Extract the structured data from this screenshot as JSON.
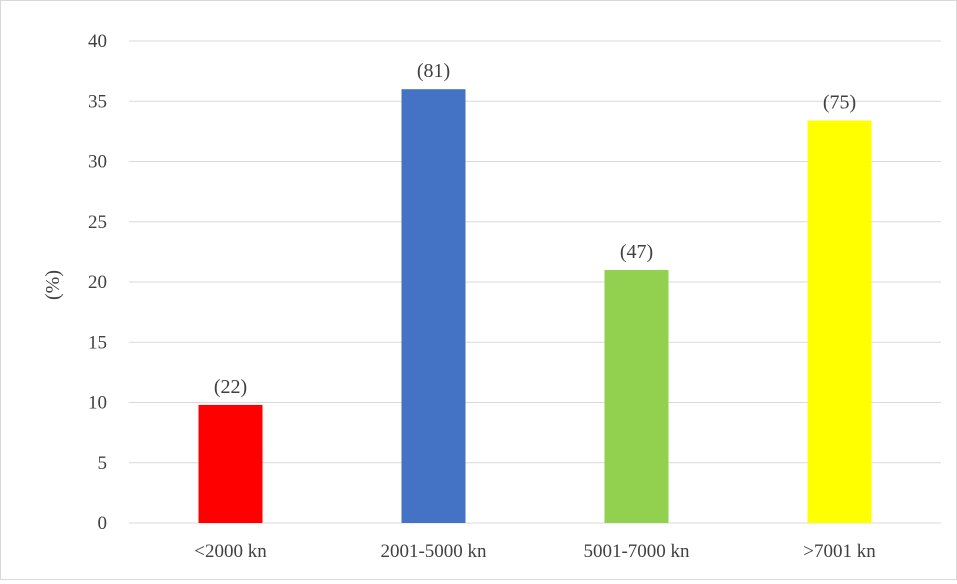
{
  "chart_data": {
    "type": "bar",
    "title": "",
    "xlabel": "",
    "ylabel": "(%)",
    "ylim": [
      0,
      40
    ],
    "yticks": [
      0,
      5,
      10,
      15,
      20,
      25,
      30,
      35,
      40
    ],
    "grid": true,
    "legend": "none",
    "categories": [
      "<2000 kn",
      "2001-5000 kn",
      "5001-7000 kn",
      ">7001 kn"
    ],
    "values": [
      9.8,
      36.0,
      21.0,
      33.4
    ],
    "data_labels": [
      "(22)",
      "(81)",
      "(47)",
      "(75)"
    ],
    "colors": [
      "#ff0000",
      "#4472c4",
      "#92d050",
      "#ffff00"
    ]
  }
}
